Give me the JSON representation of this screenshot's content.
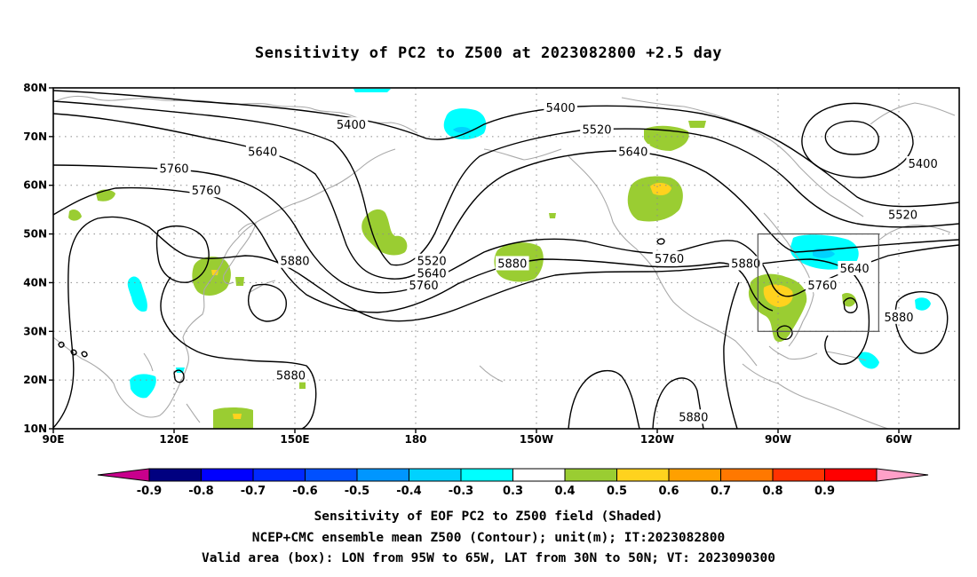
{
  "title": "Sensitivity of PC2 to Z500 at 2023082800 +2.5 day",
  "map": {
    "lon_range": [
      90,
      315
    ],
    "lat_range": [
      10,
      80
    ],
    "lat_ticks": [
      {
        "lat": 80,
        "label": "80N"
      },
      {
        "lat": 70,
        "label": "70N"
      },
      {
        "lat": 60,
        "label": "60N"
      },
      {
        "lat": 50,
        "label": "50N"
      },
      {
        "lat": 40,
        "label": "40N"
      },
      {
        "lat": 30,
        "label": "30N"
      },
      {
        "lat": 20,
        "label": "20N"
      },
      {
        "lat": 10,
        "label": "10N"
      }
    ],
    "lon_ticks": [
      {
        "lon": 90,
        "label": "90E"
      },
      {
        "lon": 120,
        "label": "120E"
      },
      {
        "lon": 150,
        "label": "150E"
      },
      {
        "lon": 180,
        "label": "180"
      },
      {
        "lon": 210,
        "label": "150W"
      },
      {
        "lon": 240,
        "label": "120W"
      },
      {
        "lon": 270,
        "label": "90W"
      },
      {
        "lon": 300,
        "label": "60W"
      }
    ],
    "valid_box": {
      "lon_w": 265,
      "lon_e": 295,
      "lat_s": 30,
      "lat_n": 50
    },
    "contour_labels": [
      {
        "text": "5400",
        "lon": 164,
        "lat": 72.5
      },
      {
        "text": "5400",
        "lon": 216,
        "lat": 76
      },
      {
        "text": "5400",
        "lon": 306,
        "lat": 64.5
      },
      {
        "text": "5520",
        "lon": 225,
        "lat": 71.5
      },
      {
        "text": "5520",
        "lon": 301,
        "lat": 54
      },
      {
        "text": "5520",
        "lon": 184,
        "lat": 44.5
      },
      {
        "text": "5640",
        "lon": 142,
        "lat": 67
      },
      {
        "text": "5640",
        "lon": 234,
        "lat": 67
      },
      {
        "text": "5640",
        "lon": 184,
        "lat": 42
      },
      {
        "text": "5640",
        "lon": 289,
        "lat": 43
      },
      {
        "text": "5760",
        "lon": 120,
        "lat": 63.5
      },
      {
        "text": "5760",
        "lon": 128,
        "lat": 59
      },
      {
        "text": "5760",
        "lon": 182,
        "lat": 39.5
      },
      {
        "text": "5760",
        "lon": 243,
        "lat": 45
      },
      {
        "text": "5760",
        "lon": 281,
        "lat": 39.5
      },
      {
        "text": "5880",
        "lon": 150,
        "lat": 44.5
      },
      {
        "text": "5880",
        "lon": 204,
        "lat": 44
      },
      {
        "text": "5880",
        "lon": 262,
        "lat": 44
      },
      {
        "text": "5880",
        "lon": 149,
        "lat": 21
      },
      {
        "text": "5880",
        "lon": 249,
        "lat": 12.5
      },
      {
        "text": "5880",
        "lon": 300,
        "lat": 33
      }
    ]
  },
  "colorbar": {
    "labels": [
      "-0.9",
      "-0.8",
      "-0.7",
      "-0.6",
      "-0.5",
      "-0.4",
      "-0.3",
      "0.3",
      "0.4",
      "0.5",
      "0.6",
      "0.7",
      "0.8",
      "0.9"
    ],
    "colors": [
      "#000080",
      "#0000ff",
      "#0028ff",
      "#0050ff",
      "#0096ff",
      "#00d2ff",
      "#00ffff",
      "#ffffff",
      "#9acd32",
      "#ffd21e",
      "#ffa000",
      "#ff7800",
      "#ff3200",
      "#ff0000"
    ],
    "low_end_color": "#c8008c",
    "high_end_color": "#ffa0c8"
  },
  "captions": {
    "line1": "Sensitivity of EOF PC2 to Z500 field (Shaded)",
    "line2": "NCEP+CMC ensemble mean Z500 (Contour); unit(m); IT:2023082800",
    "line3": "Valid area (box): LON from 95W to 65W, LAT from 30N to 50N; VT: 2023090300"
  }
}
